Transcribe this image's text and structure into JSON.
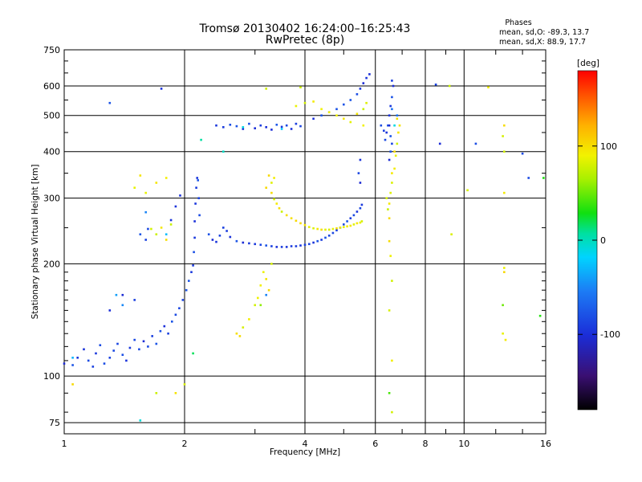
{
  "chart_data": {
    "type": "scatter",
    "title": "Tromsø 20130402 16:24:00–16:25:43",
    "subtitle": "RwPretec (8p)",
    "xlabel": "Frequency [MHz]",
    "ylabel": "Stationary phase Virtual Height [km]",
    "x_scale": "log",
    "y_scale": "log",
    "xlim": [
      1,
      16
    ],
    "ylim": [
      70,
      750
    ],
    "x_ticks": [
      1,
      2,
      4,
      6,
      8,
      10,
      16
    ],
    "x_tick_labels": [
      "1",
      "2",
      "4",
      "6",
      "8",
      "10",
      "16"
    ],
    "y_ticks": [
      75,
      100,
      200,
      300,
      400,
      500,
      600,
      750
    ],
    "y_tick_labels": [
      "75",
      "100",
      "200",
      "300",
      "400",
      "500",
      "600",
      "750"
    ],
    "grid": true,
    "legend": {
      "title": "Phases",
      "lines": [
        "mean, sd,O: -89.3, 13.7",
        "mean, sd,X: 88.9, 17.7"
      ],
      "placement": "top-right"
    },
    "colorbar": {
      "label": "[deg]",
      "range": [
        -180,
        180
      ],
      "ticks": [
        100,
        0,
        -100
      ],
      "tick_labels": [
        "100",
        "0",
        "-100"
      ]
    },
    "series": [
      {
        "name": "O",
        "phase_mean": -89.3,
        "points": [
          [
            1.0,
            108
          ],
          [
            1.05,
            107
          ],
          [
            1.08,
            112
          ],
          [
            1.12,
            118
          ],
          [
            1.15,
            110
          ],
          [
            1.18,
            106
          ],
          [
            1.2,
            115
          ],
          [
            1.23,
            121
          ],
          [
            1.26,
            108
          ],
          [
            1.3,
            112
          ],
          [
            1.33,
            117
          ],
          [
            1.36,
            122
          ],
          [
            1.4,
            114
          ],
          [
            1.43,
            110
          ],
          [
            1.46,
            119
          ],
          [
            1.5,
            125
          ],
          [
            1.54,
            118
          ],
          [
            1.58,
            124
          ],
          [
            1.62,
            120
          ],
          [
            1.66,
            128
          ],
          [
            1.7,
            122
          ],
          [
            1.74,
            132
          ],
          [
            1.78,
            136
          ],
          [
            1.82,
            130
          ],
          [
            1.86,
            140
          ],
          [
            1.9,
            146
          ],
          [
            1.94,
            152
          ],
          [
            1.98,
            160
          ],
          [
            2.02,
            170
          ],
          [
            2.05,
            180
          ],
          [
            2.08,
            190
          ],
          [
            2.1,
            198
          ],
          [
            2.11,
            215
          ],
          [
            2.12,
            235
          ],
          [
            2.12,
            260
          ],
          [
            2.13,
            290
          ],
          [
            2.14,
            320
          ],
          [
            2.15,
            340
          ],
          [
            2.16,
            335
          ],
          [
            2.17,
            300
          ],
          [
            2.18,
            270
          ],
          [
            2.3,
            240
          ],
          [
            2.35,
            232
          ],
          [
            2.4,
            229
          ],
          [
            2.45,
            238
          ],
          [
            2.5,
            250
          ],
          [
            2.55,
            245
          ],
          [
            2.6,
            236
          ],
          [
            2.7,
            230
          ],
          [
            2.8,
            228
          ],
          [
            2.9,
            227
          ],
          [
            3.0,
            226
          ],
          [
            3.1,
            225
          ],
          [
            3.2,
            224
          ],
          [
            3.3,
            223
          ],
          [
            3.4,
            222
          ],
          [
            3.5,
            222
          ],
          [
            3.6,
            222
          ],
          [
            3.7,
            223
          ],
          [
            3.8,
            223
          ],
          [
            3.9,
            224
          ],
          [
            4.0,
            225
          ],
          [
            4.1,
            226
          ],
          [
            4.2,
            228
          ],
          [
            4.3,
            230
          ],
          [
            4.4,
            232
          ],
          [
            4.5,
            235
          ],
          [
            4.6,
            238
          ],
          [
            4.7,
            242
          ],
          [
            4.8,
            246
          ],
          [
            4.9,
            250
          ],
          [
            5.0,
            255
          ],
          [
            5.1,
            260
          ],
          [
            5.2,
            265
          ],
          [
            5.3,
            270
          ],
          [
            5.4,
            276
          ],
          [
            5.5,
            282
          ],
          [
            5.55,
            288
          ],
          [
            2.4,
            470
          ],
          [
            2.5,
            465
          ],
          [
            2.6,
            472
          ],
          [
            2.7,
            468
          ],
          [
            2.8,
            460
          ],
          [
            2.9,
            475
          ],
          [
            3.0,
            462
          ],
          [
            3.1,
            470
          ],
          [
            3.2,
            465
          ],
          [
            3.3,
            458
          ],
          [
            3.4,
            472
          ],
          [
            3.5,
            466
          ],
          [
            3.6,
            470
          ],
          [
            3.7,
            460
          ],
          [
            3.8,
            475
          ],
          [
            3.9,
            468
          ],
          [
            4.2,
            490
          ],
          [
            4.4,
            500
          ],
          [
            4.6,
            510
          ],
          [
            4.8,
            520
          ],
          [
            5.0,
            535
          ],
          [
            5.2,
            550
          ],
          [
            5.4,
            570
          ],
          [
            5.5,
            590
          ],
          [
            5.6,
            610
          ],
          [
            5.7,
            630
          ],
          [
            5.8,
            645
          ],
          [
            5.5,
            330
          ],
          [
            5.45,
            350
          ],
          [
            5.5,
            380
          ],
          [
            6.2,
            470
          ],
          [
            6.3,
            455
          ],
          [
            6.35,
            430
          ],
          [
            6.4,
            450
          ],
          [
            6.45,
            470
          ],
          [
            6.5,
            500
          ],
          [
            6.55,
            530
          ],
          [
            6.6,
            560
          ],
          [
            6.65,
            600
          ],
          [
            6.6,
            620
          ],
          [
            6.5,
            470
          ],
          [
            6.55,
            440
          ],
          [
            6.6,
            420
          ],
          [
            6.55,
            400
          ],
          [
            6.5,
            380
          ],
          [
            1.3,
            540
          ],
          [
            1.75,
            590
          ],
          [
            1.55,
            240
          ],
          [
            1.6,
            232
          ],
          [
            1.62,
            248
          ],
          [
            1.85,
            262
          ],
          [
            1.9,
            285
          ],
          [
            1.95,
            305
          ],
          [
            8.5,
            605
          ],
          [
            8.7,
            420
          ],
          [
            10.7,
            420
          ],
          [
            14,
            395
          ],
          [
            14.5,
            340
          ],
          [
            1.5,
            160
          ],
          [
            1.4,
            165
          ],
          [
            1.3,
            150
          ]
        ]
      },
      {
        "name": "X",
        "phase_mean": 88.9,
        "points": [
          [
            3.3,
            310
          ],
          [
            3.35,
            298
          ],
          [
            3.4,
            290
          ],
          [
            3.45,
            282
          ],
          [
            3.5,
            276
          ],
          [
            3.6,
            270
          ],
          [
            3.7,
            265
          ],
          [
            3.8,
            261
          ],
          [
            3.9,
            257
          ],
          [
            4.0,
            254
          ],
          [
            4.1,
            251
          ],
          [
            4.2,
            249
          ],
          [
            4.3,
            248
          ],
          [
            4.4,
            247
          ],
          [
            4.5,
            247
          ],
          [
            4.6,
            247
          ],
          [
            4.7,
            248
          ],
          [
            4.8,
            249
          ],
          [
            4.9,
            250
          ],
          [
            5.0,
            251
          ],
          [
            5.1,
            252
          ],
          [
            5.2,
            253
          ],
          [
            5.3,
            255
          ],
          [
            5.4,
            257
          ],
          [
            5.5,
            258
          ],
          [
            5.55,
            260
          ],
          [
            3.3,
            330
          ],
          [
            3.2,
            320
          ],
          [
            3.25,
            345
          ],
          [
            3.35,
            340
          ],
          [
            2.7,
            130
          ],
          [
            2.75,
            128
          ],
          [
            2.8,
            135
          ],
          [
            2.9,
            142
          ],
          [
            3.0,
            155
          ],
          [
            3.05,
            162
          ],
          [
            3.1,
            175
          ],
          [
            3.2,
            182
          ],
          [
            3.25,
            170
          ],
          [
            3.15,
            190
          ],
          [
            3.3,
            200
          ],
          [
            3.8,
            530
          ],
          [
            4.0,
            540
          ],
          [
            4.2,
            545
          ],
          [
            4.4,
            520
          ],
          [
            4.6,
            510
          ],
          [
            4.8,
            500
          ],
          [
            5.0,
            490
          ],
          [
            5.2,
            480
          ],
          [
            5.4,
            505
          ],
          [
            5.6,
            520
          ],
          [
            5.7,
            540
          ],
          [
            5.6,
            470
          ],
          [
            6.4,
            300
          ],
          [
            6.5,
            290
          ],
          [
            6.55,
            310
          ],
          [
            6.6,
            330
          ],
          [
            6.7,
            360
          ],
          [
            6.75,
            390
          ],
          [
            6.8,
            420
          ],
          [
            6.85,
            450
          ],
          [
            6.9,
            470
          ],
          [
            6.8,
            490
          ],
          [
            6.7,
            400
          ],
          [
            6.6,
            350
          ],
          [
            6.5,
            265
          ],
          [
            6.45,
            280
          ],
          [
            1.7,
            330
          ],
          [
            1.8,
            340
          ],
          [
            1.75,
            250
          ],
          [
            1.8,
            232
          ],
          [
            1.85,
            255
          ],
          [
            1.65,
            248
          ],
          [
            1.7,
            240
          ],
          [
            3.2,
            590
          ],
          [
            3.9,
            595
          ],
          [
            9.2,
            600
          ],
          [
            11.5,
            595
          ],
          [
            12.6,
            470
          ],
          [
            12.5,
            440
          ],
          [
            12.6,
            400
          ],
          [
            10.2,
            315
          ],
          [
            12.6,
            310
          ],
          [
            9.3,
            240
          ],
          [
            12.6,
            195
          ],
          [
            12.6,
            190
          ],
          [
            12.5,
            130
          ],
          [
            12.7,
            125
          ],
          [
            1.55,
            345
          ],
          [
            1.5,
            320
          ],
          [
            1.6,
            310
          ],
          [
            1.7,
            90
          ],
          [
            2.0,
            95
          ],
          [
            1.9,
            90
          ],
          [
            1.05,
            95
          ],
          [
            6.6,
            80
          ],
          [
            6.5,
            230
          ],
          [
            6.55,
            210
          ],
          [
            6.6,
            180
          ],
          [
            6.5,
            150
          ],
          [
            6.6,
            110
          ]
        ]
      },
      {
        "name": "other",
        "phase_mean": 0,
        "points": [
          [
            1.35,
            165
          ],
          [
            1.6,
            275
          ],
          [
            1.8,
            240
          ],
          [
            2.1,
            115
          ],
          [
            2.2,
            430
          ],
          [
            2.5,
            400
          ],
          [
            3.1,
            155
          ],
          [
            3.2,
            165
          ],
          [
            2.8,
            465
          ],
          [
            3.5,
            460
          ],
          [
            6.6,
            520
          ],
          [
            6.8,
            500
          ],
          [
            6.7,
            470
          ],
          [
            1.4,
            155
          ],
          [
            1.05,
            112
          ],
          [
            12.5,
            155
          ],
          [
            15.5,
            145
          ],
          [
            15.8,
            340
          ],
          [
            1.55,
            76
          ],
          [
            6.5,
            90
          ]
        ]
      }
    ]
  }
}
